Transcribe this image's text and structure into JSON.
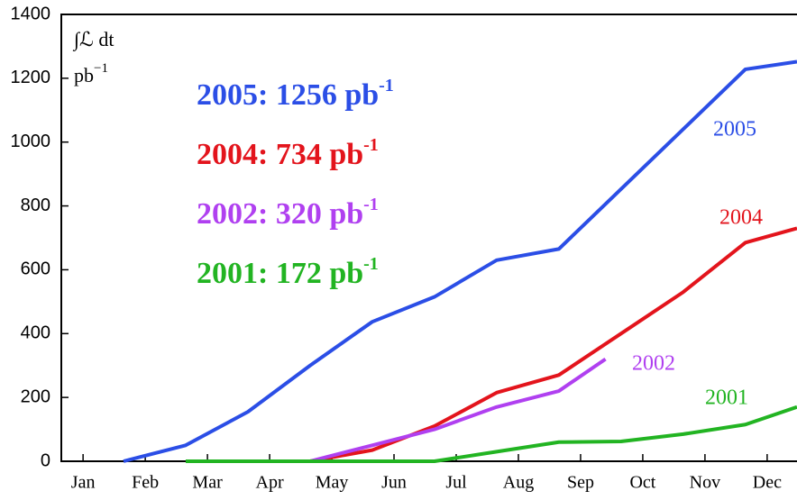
{
  "chart_data": {
    "type": "line",
    "y_label": {
      "text": "∫ℒ dt",
      "unit": "pb",
      "unit_sup": "−1"
    },
    "series": [
      {
        "name": "2005",
        "color": "#2b4ee6",
        "x": [
          1.65,
          2.65,
          3.65,
          4.65,
          5.65,
          6.65,
          7.65,
          8.65,
          11.65,
          12.48
        ],
        "values": [
          0,
          50,
          155,
          300,
          437,
          515,
          630,
          665,
          1228,
          1252
        ]
      },
      {
        "name": "2004",
        "color": "#e3141c",
        "x": [
          4.65,
          5.65,
          6.65,
          7.65,
          8.65,
          9.65,
          10.65,
          11.65,
          12.48
        ],
        "values": [
          0,
          35,
          110,
          215,
          270,
          400,
          530,
          685,
          730
        ]
      },
      {
        "name": "2002",
        "color": "#b040f0",
        "x": [
          4.65,
          5.65,
          6.65,
          7.65,
          8.65,
          9.4
        ],
        "values": [
          0,
          50,
          100,
          170,
          220,
          320
        ]
      },
      {
        "name": "2001",
        "color": "#22b422",
        "x": [
          2.65,
          6.65,
          7.65,
          8.65,
          9.65,
          10.65,
          11.65,
          12.48
        ],
        "values": [
          0,
          0,
          30,
          60,
          62,
          85,
          115,
          170
        ]
      }
    ],
    "totals": [
      {
        "text": "2005: 1256 pb",
        "sup": "-1",
        "color": "#2b4ee6"
      },
      {
        "text": "2004: 734 pb",
        "sup": "-1",
        "color": "#e3141c"
      },
      {
        "text": "2002: 320 pb",
        "sup": "-1",
        "color": "#b040f0"
      },
      {
        "text": "2001: 172 pb",
        "sup": "-1",
        "color": "#22b422"
      }
    ],
    "xlim": [
      0.65,
      12.48
    ],
    "xticks": [
      {
        "value": 1,
        "label": "Jan"
      },
      {
        "value": 2,
        "label": "Feb"
      },
      {
        "value": 3,
        "label": "Mar"
      },
      {
        "value": 4,
        "label": "Apr"
      },
      {
        "value": 5,
        "label": "May"
      },
      {
        "value": 6,
        "label": "Jun"
      },
      {
        "value": 7,
        "label": "Jul"
      },
      {
        "value": 8,
        "label": "Aug"
      },
      {
        "value": 9,
        "label": "Sep"
      },
      {
        "value": 10,
        "label": "Oct"
      },
      {
        "value": 11,
        "label": "Nov"
      },
      {
        "value": 12,
        "label": "Dec"
      }
    ],
    "ylim": [
      0,
      1400
    ],
    "yticks": [
      0,
      200,
      400,
      600,
      800,
      1000,
      1200,
      1400
    ]
  }
}
